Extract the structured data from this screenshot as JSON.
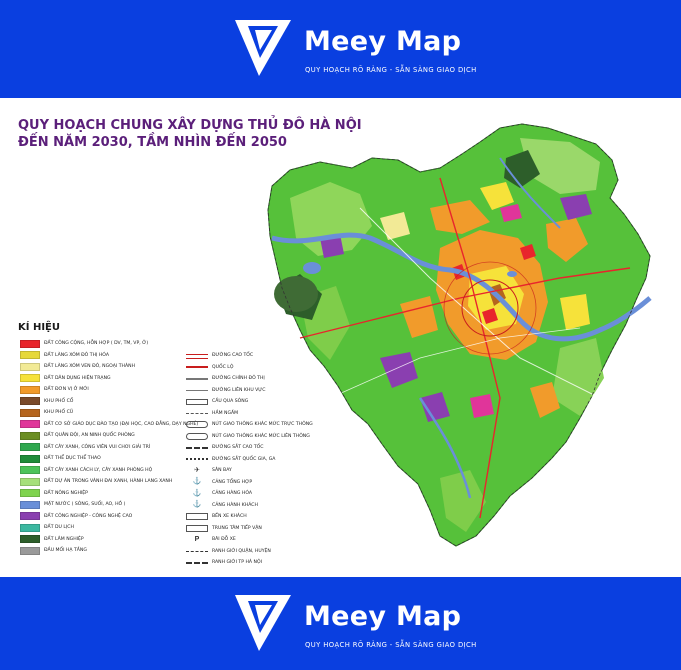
{
  "brand": {
    "name": "Meey Map",
    "tagline": "QUY HOẠCH RÕ RÀNG - SẴN SÀNG GIAO DỊCH",
    "background_color": "#0a3fe0",
    "logo_icon": "meey-map-logo-icon"
  },
  "map": {
    "title_line1": "QUY HOẠCH CHUNG XÂY DỰNG THỦ ĐÔ HÀ NỘI",
    "title_line2": "ĐẾN NĂM 2030, TẦM NHÌN ĐẾN 2050",
    "title_color": "#5b1f7a",
    "legend_heading": "KÍ HIỆU",
    "land_use_legend": [
      {
        "label": "ĐẤT CÔNG CỘNG, HỖN HỢP ( DV, TM, VP, Ở)",
        "color": "#e8252c"
      },
      {
        "label": "ĐẤT LÀNG XÓM ĐÔ THỊ HÓA",
        "color": "#e6d83a"
      },
      {
        "label": "ĐẤT LÀNG XÓM VEN ĐÔ, NGOẠI THÀNH",
        "color": "#f2ea96"
      },
      {
        "label": "ĐẤT DÂN DỤNG HIỆN TRẠNG",
        "color": "#f6e23a"
      },
      {
        "label": "ĐẤT ĐƠN VỊ Ở MỚI",
        "color": "#f19b2b"
      },
      {
        "label": "KHU PHỐ CỔ",
        "color": "#7a4a2a"
      },
      {
        "label": "KHU PHỐ CŨ",
        "color": "#b5651d"
      },
      {
        "label": "ĐẤT CƠ SỞ GIÁO DỤC ĐÀO TẠO (ĐẠI HỌC, CAO ĐẲNG, DẠY NGHỀ)",
        "color": "#e0359a"
      },
      {
        "label": "ĐẤT QUÂN ĐỘI, AN NINH QUỐC PHÒNG",
        "color": "#6b8e23"
      },
      {
        "label": "ĐẤT CÂY XANH, CÔNG VIÊN VUI CHƠI GIẢI TRÍ",
        "color": "#2fa84f"
      },
      {
        "label": "ĐẤT THỂ DỤC THỂ THAO",
        "color": "#1e8c3a"
      },
      {
        "label": "ĐẤT CÂY XANH CÁCH LY, CÂY XANH PHÒNG HỘ",
        "color": "#4cc35a"
      },
      {
        "label": "ĐẤT DỰ ÁN TRONG VÀNH ĐAI XANH, HÀNH LANG XANH",
        "color": "#a6e07a"
      },
      {
        "label": "ĐẤT NÔNG NGHIỆP",
        "color": "#7fd34e"
      },
      {
        "label": "MẶT NƯỚC ( SÔNG, SUỐI, AO, HỒ )",
        "color": "#6a8fd8"
      },
      {
        "label": "ĐẤT CÔNG NGHIỆP - CÔNG NGHỆ CAO",
        "color": "#8a3fb0"
      },
      {
        "label": "ĐẤT DU LỊCH",
        "color": "#3cb8a0"
      },
      {
        "label": "ĐẤT LÂM NGHIỆP",
        "color": "#2d5e2a"
      },
      {
        "label": "ĐẦU MỐI HẠ TẦNG",
        "color": "#9a9a9a"
      }
    ],
    "infrastructure_legend": [
      {
        "label": "ĐƯỜNG CAO TỐC",
        "symbol": "double-red-line-icon"
      },
      {
        "label": "QUỐC LỘ",
        "symbol": "red-line-icon"
      },
      {
        "label": "ĐƯỜNG CHÍNH ĐÔ THỊ",
        "symbol": "gray-line-icon"
      },
      {
        "label": "ĐƯỜNG LIÊN KHU VỰC",
        "symbol": "thin-line-icon"
      },
      {
        "label": "CẦU QUA SÔNG",
        "symbol": "bridge-icon"
      },
      {
        "label": "HẦM NGẦM",
        "symbol": "tunnel-icon"
      },
      {
        "label": "NÚT GIAO THÔNG KHÁC MỨC TRỰC THÔNG",
        "symbol": "interchange-icon"
      },
      {
        "label": "NÚT GIAO THÔNG KHÁC MỨC LIÊN THÔNG",
        "symbol": "interchange-icon"
      },
      {
        "label": "ĐƯỜNG SẮT CAO TỐC",
        "symbol": "rail-icon"
      },
      {
        "label": "ĐƯỜNG SẮT QUỐC GIA, GA",
        "symbol": "rail-icon"
      },
      {
        "label": "SÂN BAY",
        "symbol": "airplane-icon"
      },
      {
        "label": "CẢNG TỔNG HỢP",
        "symbol": "port-icon"
      },
      {
        "label": "CẢNG HÀNG HÓA",
        "symbol": "port-icon"
      },
      {
        "label": "CẢNG HÀNH KHÁCH",
        "symbol": "port-icon"
      },
      {
        "label": "BẾN XE KHÁCH",
        "symbol": "bus-icon"
      },
      {
        "label": "TRUNG TÂM TIẾP VẬN",
        "symbol": "logistics-icon"
      },
      {
        "label": "BÃI ĐỖ XE",
        "symbol": "parking-icon"
      },
      {
        "label": "RANH GIỚI QUẬN, HUYỆN",
        "symbol": "dashed-line-icon"
      },
      {
        "label": "RANH GIỚI TP HÀ NỘI",
        "symbol": "boundary-line-icon"
      }
    ]
  }
}
